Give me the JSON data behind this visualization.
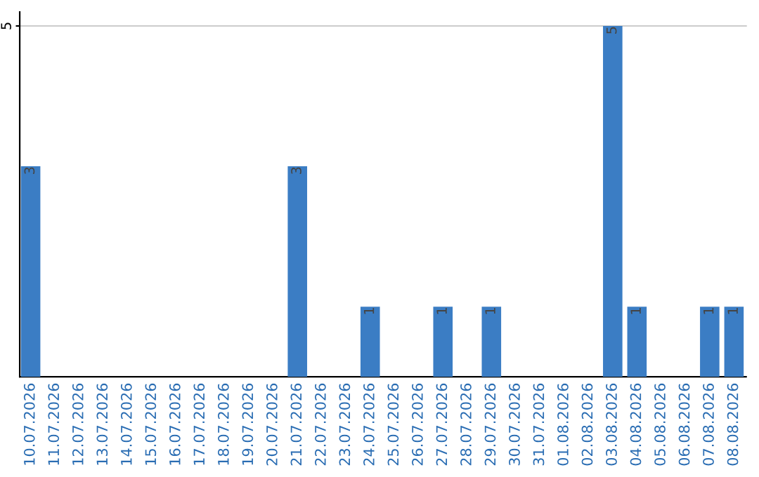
{
  "chart_data": {
    "type": "bar",
    "categories": [
      "10.07.2026",
      "11.07.2026",
      "12.07.2026",
      "13.07.2026",
      "14.07.2026",
      "15.07.2026",
      "16.07.2026",
      "17.07.2026",
      "18.07.2026",
      "19.07.2026",
      "20.07.2026",
      "21.07.2026",
      "22.07.2026",
      "23.07.2026",
      "24.07.2026",
      "25.07.2026",
      "26.07.2026",
      "27.07.2026",
      "28.07.2026",
      "29.07.2026",
      "30.07.2026",
      "31.07.2026",
      "01.08.2026",
      "02.08.2026",
      "03.08.2026",
      "04.08.2026",
      "05.08.2026",
      "06.08.2026",
      "07.08.2026",
      "08.08.2026"
    ],
    "values": [
      3,
      0,
      0,
      0,
      0,
      0,
      0,
      0,
      0,
      0,
      0,
      3,
      0,
      0,
      1,
      0,
      0,
      1,
      0,
      1,
      0,
      0,
      0,
      0,
      5,
      1,
      0,
      0,
      1,
      1
    ],
    "value_labels": [
      "3",
      null,
      null,
      null,
      null,
      null,
      null,
      null,
      null,
      null,
      null,
      "3",
      null,
      null,
      "1",
      null,
      null,
      "1",
      null,
      "1",
      null,
      null,
      null,
      null,
      "5",
      "1",
      null,
      null,
      "1",
      "1"
    ],
    "color": "#3b7dc4",
    "ylim": [
      0,
      5.2
    ],
    "yticks": [
      5
    ],
    "grid": "y"
  }
}
